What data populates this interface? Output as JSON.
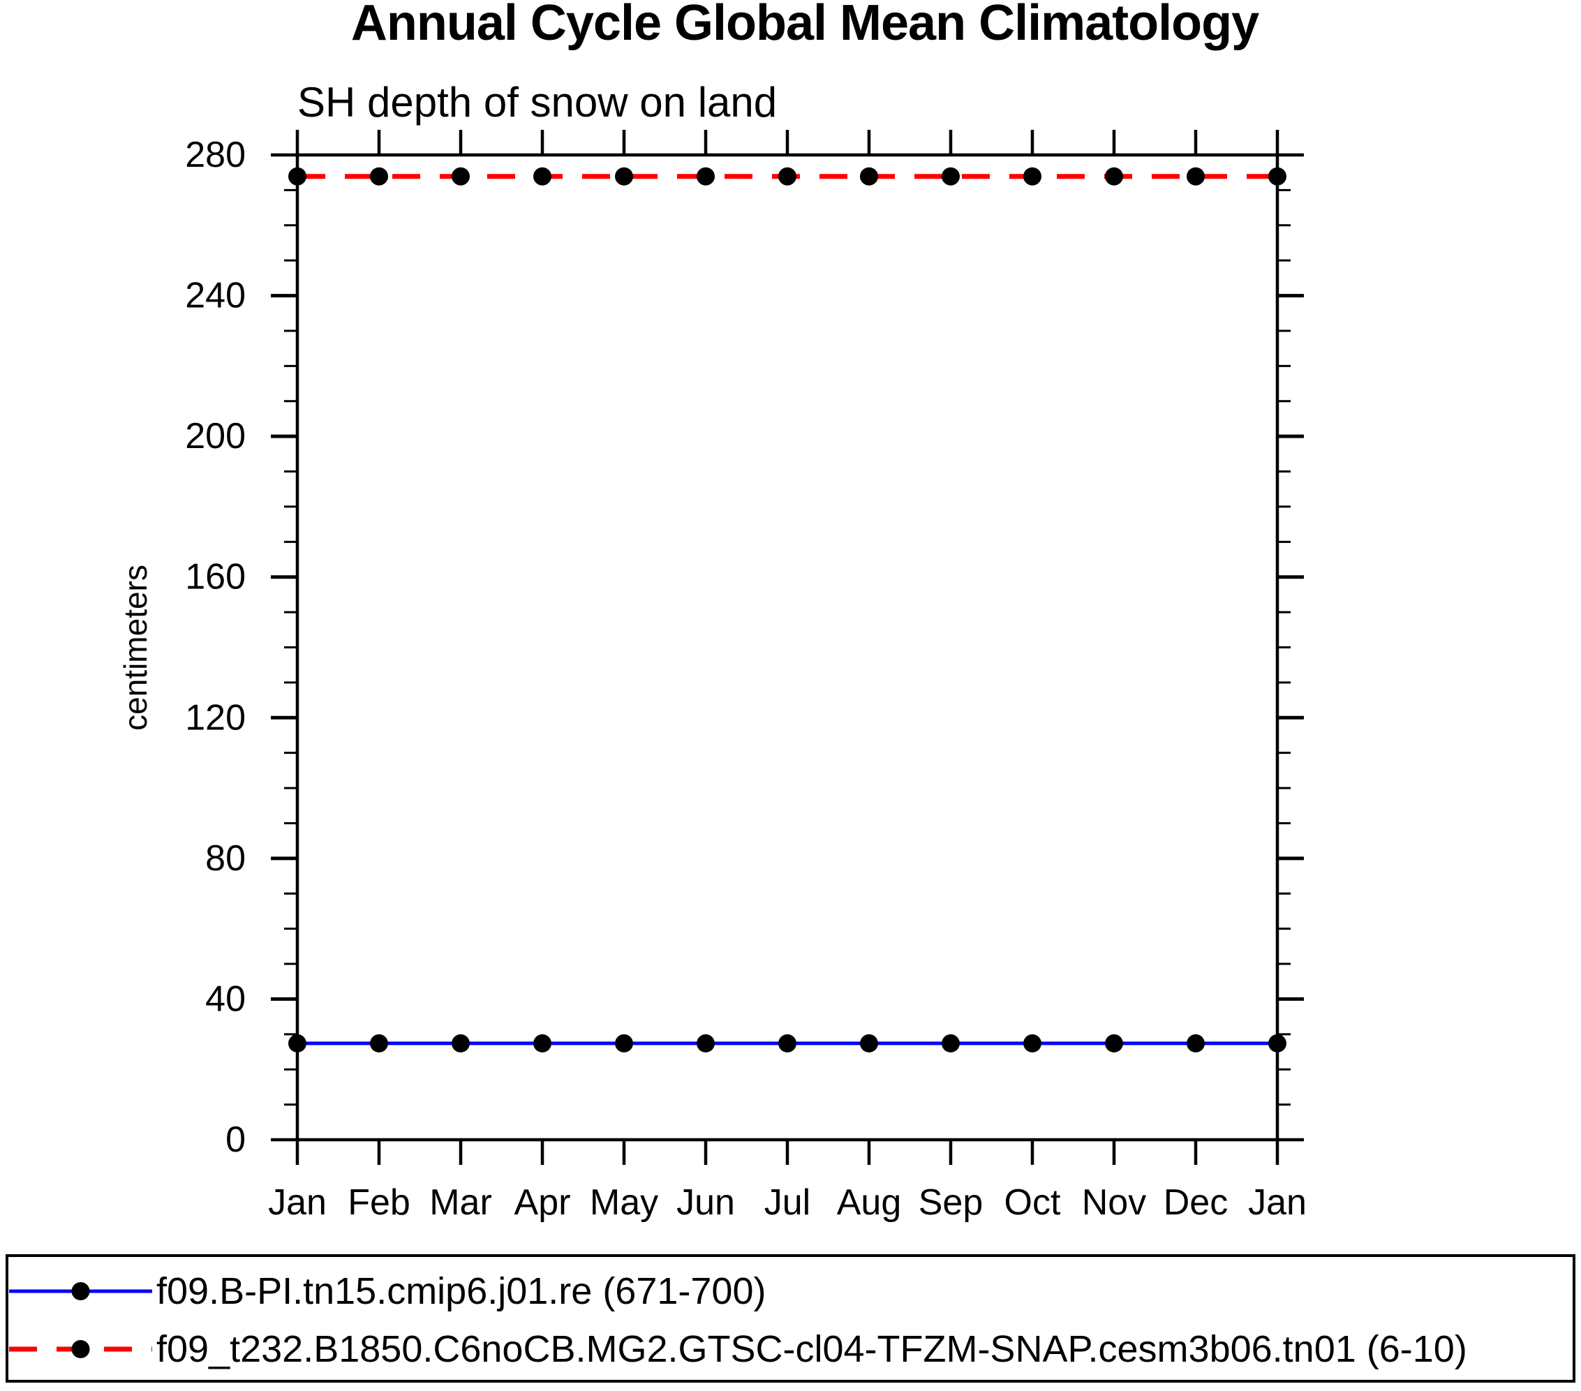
{
  "page": {
    "background": "#ffffff",
    "axis_color": "#000000"
  },
  "chart_data": {
    "type": "line",
    "title": "Annual Cycle Global Mean Climatology",
    "subtitle": "SH depth of snow on land",
    "xlabel": "",
    "ylabel": "centimeters",
    "categories": [
      "Jan",
      "Feb",
      "Mar",
      "Apr",
      "May",
      "Jun",
      "Jul",
      "Aug",
      "Sep",
      "Oct",
      "Nov",
      "Dec",
      "Jan"
    ],
    "ylim": [
      0,
      280
    ],
    "ytick_labels": [
      "0",
      "40",
      "80",
      "120",
      "160",
      "200",
      "240",
      "280"
    ],
    "ytick_major_interval": 40,
    "ytick_minor_interval": 10,
    "grid": false,
    "legend_position": "bottom-box",
    "series": [
      {
        "name": "f09.B-PI.tn15.cmip6.j01.re (671-700)",
        "color": "#0000ff",
        "line_style": "solid",
        "marker": "circle",
        "marker_color": "#000000",
        "values": [
          27.4,
          27.4,
          27.4,
          27.4,
          27.4,
          27.4,
          27.4,
          27.4,
          27.4,
          27.4,
          27.4,
          27.4,
          27.4
        ]
      },
      {
        "name": "f09_t232.B1850.C6noCB.MG2.GTSC-cl04-TFZM-SNAP.cesm3b06.tn01 (6-10)",
        "color": "#ff0000",
        "line_style": "dashed",
        "marker": "circle",
        "marker_color": "#000000",
        "values": [
          273.9,
          273.9,
          273.9,
          273.9,
          273.9,
          273.9,
          273.9,
          273.9,
          273.9,
          273.9,
          273.9,
          273.9,
          273.9
        ]
      }
    ]
  }
}
